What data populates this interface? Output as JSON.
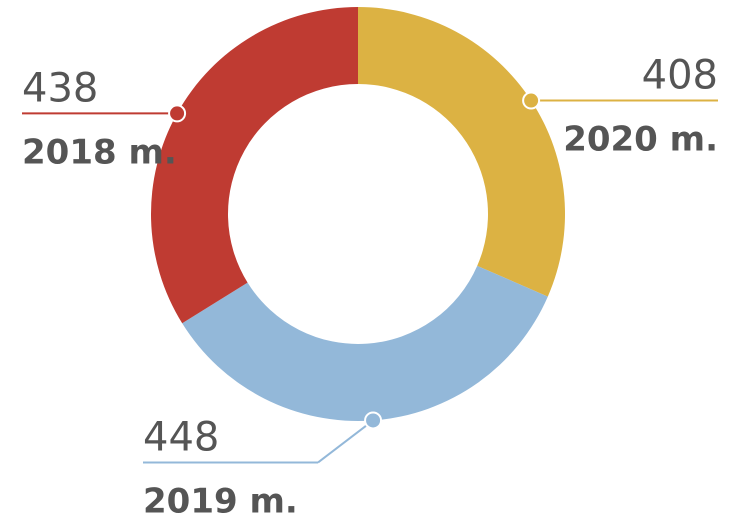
{
  "chart_data": {
    "type": "donut",
    "categories": [
      "2020 m.",
      "2019 m.",
      "2018 m."
    ],
    "values": [
      408,
      448,
      438
    ],
    "colors": [
      "#dcb243",
      "#93b8d9",
      "#bf3b32"
    ]
  }
}
